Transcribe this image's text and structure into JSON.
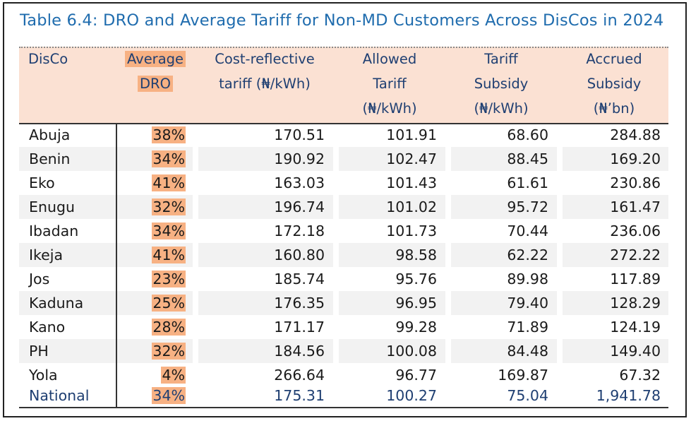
{
  "title": "Table 6.4: DRO and Average Tariff for Non-MD Customers Across DisCos in 2024",
  "headers": {
    "disco": "DisCo",
    "dro_line1": "Average",
    "dro_line2": "DRO",
    "cost_line1": "Cost-reflective",
    "cost_line2": "tariff (₦/kWh)",
    "allowed_line1": "Allowed",
    "allowed_line2": "Tariff",
    "allowed_line3": "(₦/kWh)",
    "subsidy_line1": "Tariff",
    "subsidy_line2": "Subsidy",
    "subsidy_line3": "(₦/kWh)",
    "accrued_line1": "Accrued",
    "accrued_line2": "Subsidy",
    "accrued_line3": "(₦’bn)"
  },
  "rows": [
    {
      "disco": "Abuja",
      "dro": "38%",
      "cost": "170.51",
      "allowed": "101.91",
      "subsidy": "68.60",
      "accrued": "284.88"
    },
    {
      "disco": "Benin",
      "dro": "34%",
      "cost": "190.92",
      "allowed": "102.47",
      "subsidy": "88.45",
      "accrued": "169.20"
    },
    {
      "disco": "Eko",
      "dro": "41%",
      "cost": "163.03",
      "allowed": "101.43",
      "subsidy": "61.61",
      "accrued": "230.86"
    },
    {
      "disco": "Enugu",
      "dro": "32%",
      "cost": "196.74",
      "allowed": "101.02",
      "subsidy": "95.72",
      "accrued": "161.47"
    },
    {
      "disco": "Ibadan",
      "dro": "34%",
      "cost": "172.18",
      "allowed": "101.73",
      "subsidy": "70.44",
      "accrued": "236.06"
    },
    {
      "disco": "Ikeja",
      "dro": "41%",
      "cost": "160.80",
      "allowed": "98.58",
      "subsidy": "62.22",
      "accrued": "272.22"
    },
    {
      "disco": "Jos",
      "dro": "23%",
      "cost": "185.74",
      "allowed": "95.76",
      "subsidy": "89.98",
      "accrued": "117.89"
    },
    {
      "disco": "Kaduna",
      "dro": "25%",
      "cost": "176.35",
      "allowed": "96.95",
      "subsidy": "79.40",
      "accrued": "128.29"
    },
    {
      "disco": "Kano",
      "dro": "28%",
      "cost": "171.17",
      "allowed": "99.28",
      "subsidy": "71.89",
      "accrued": "124.19"
    },
    {
      "disco": "PH",
      "dro": "32%",
      "cost": "184.56",
      "allowed": "100.08",
      "subsidy": "84.48",
      "accrued": "149.40"
    },
    {
      "disco": "Yola",
      "dro": "4%",
      "cost": "266.64",
      "allowed": "96.77",
      "subsidy": "169.87",
      "accrued": "67.32"
    },
    {
      "disco": "National",
      "dro": "34%",
      "cost": "175.31",
      "allowed": "100.27",
      "subsidy": "75.04",
      "accrued": "1,941.78"
    }
  ]
}
